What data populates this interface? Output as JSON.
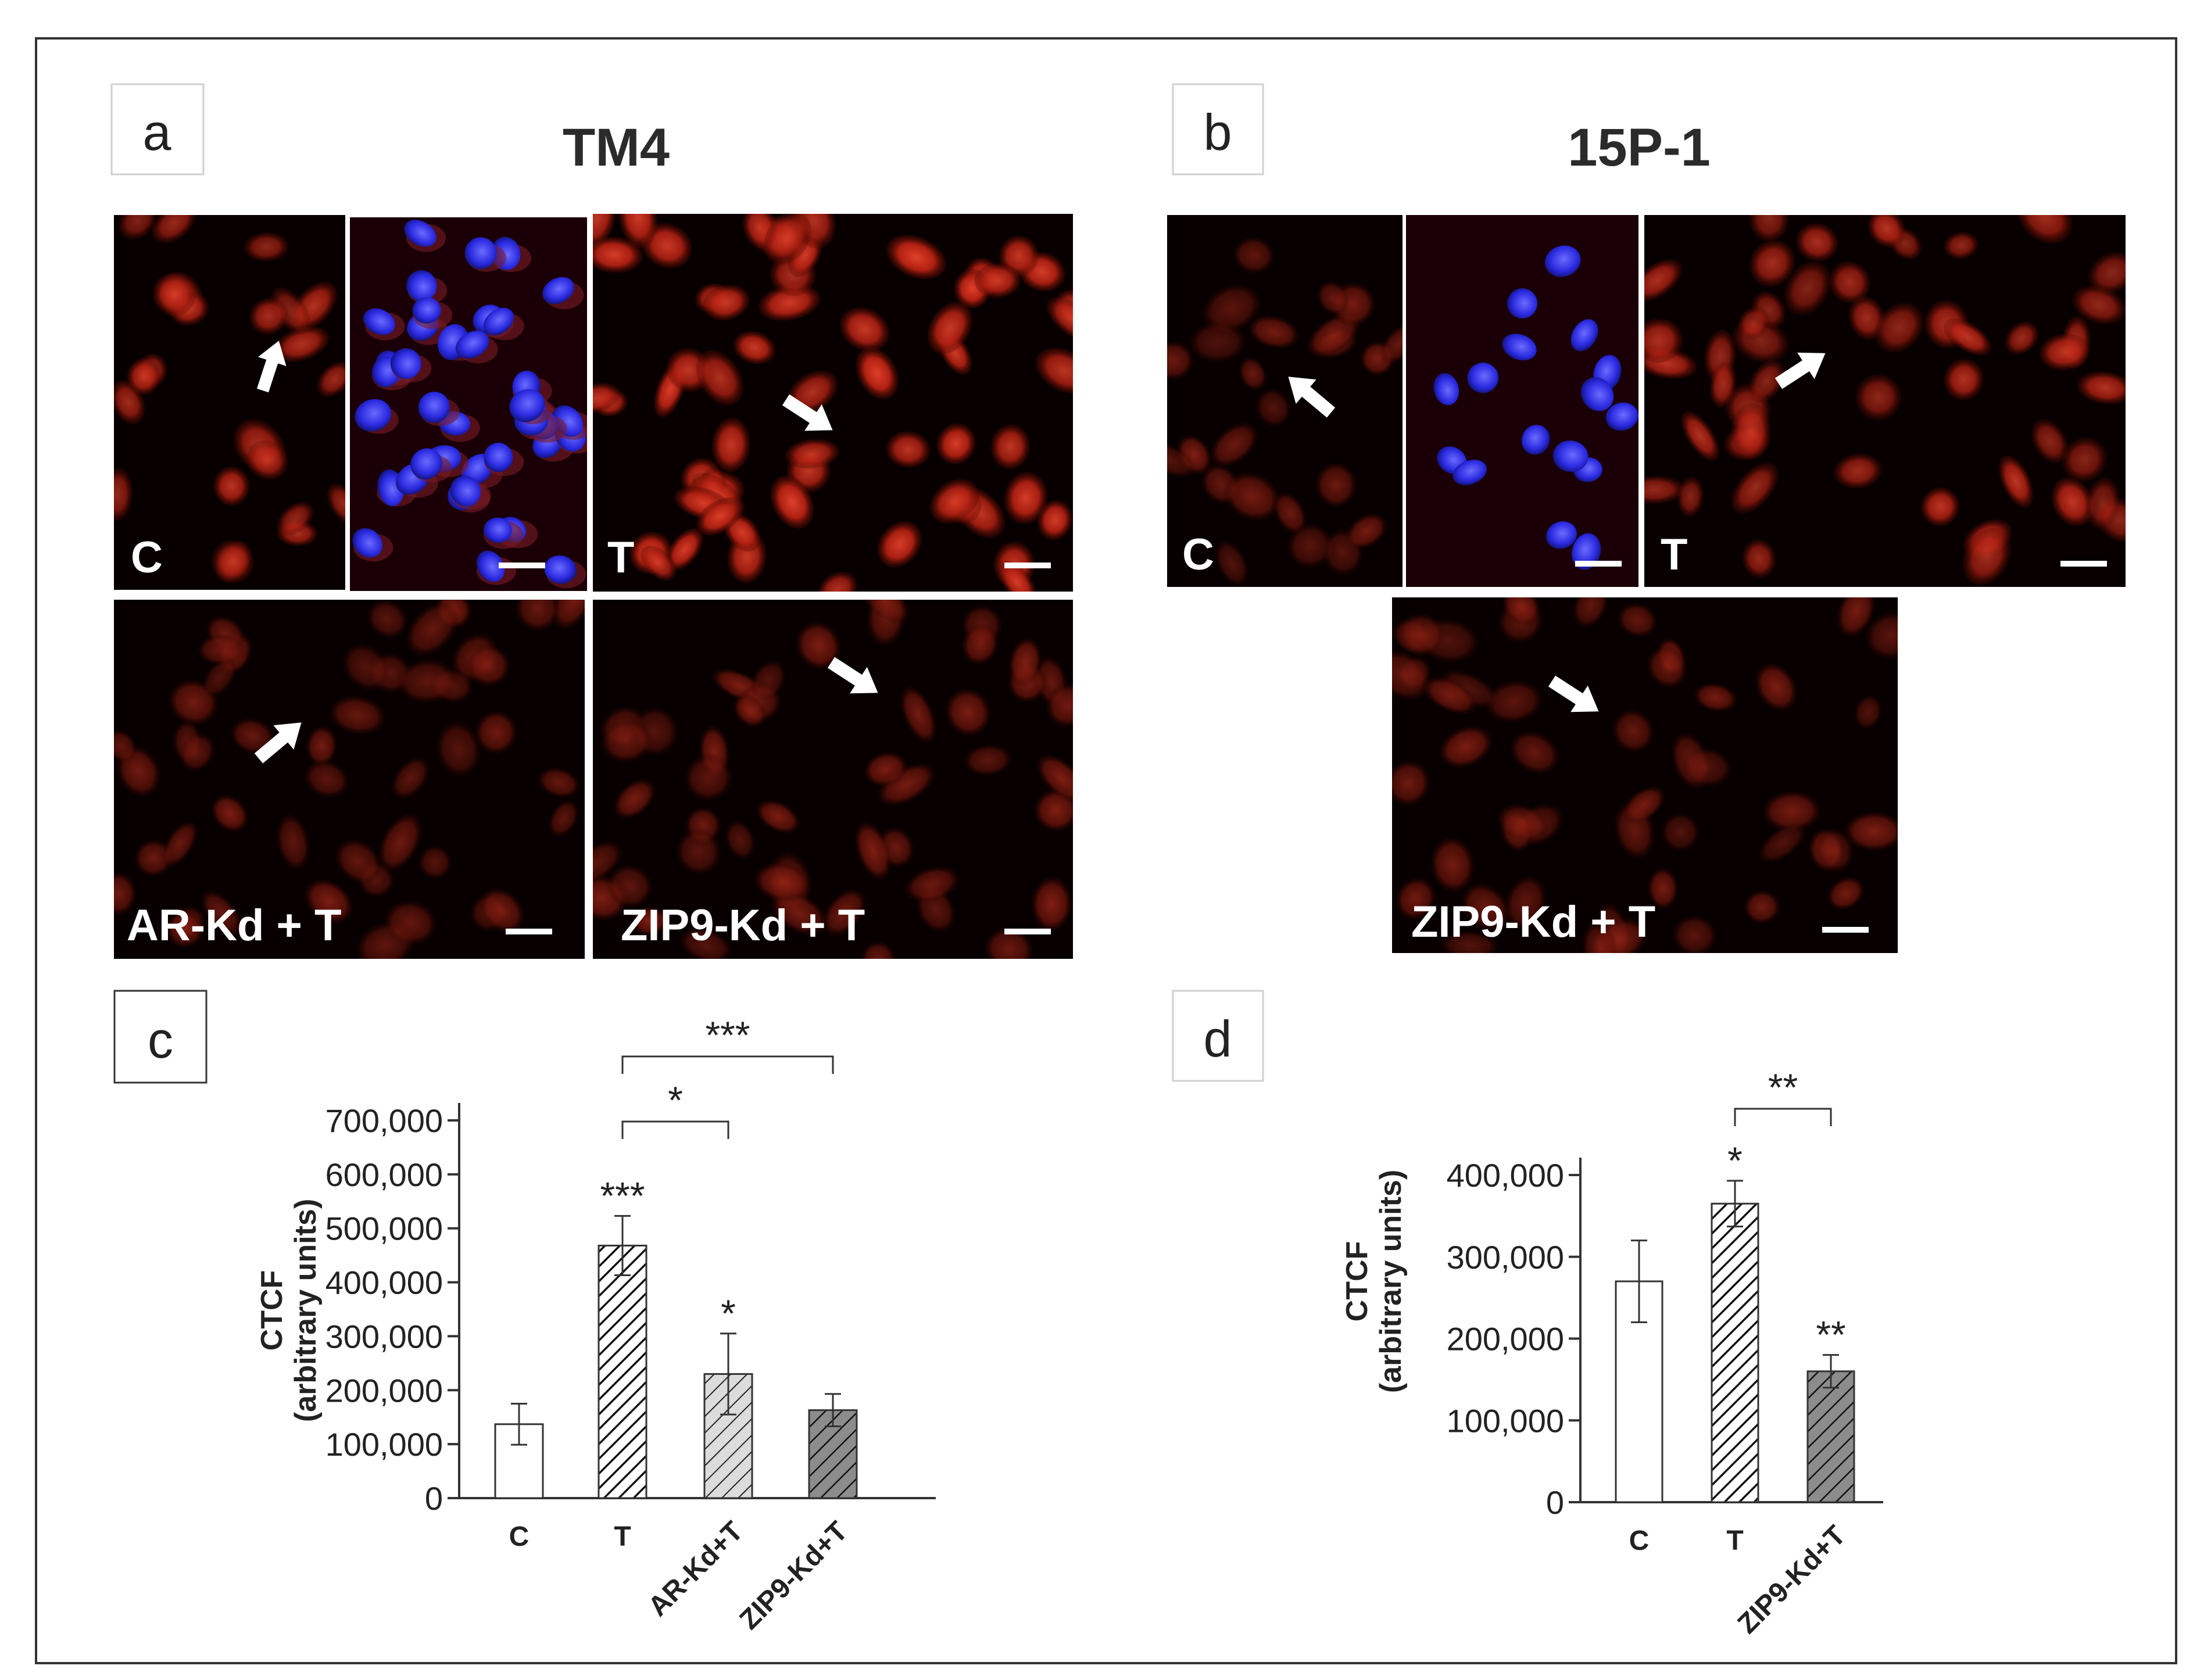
{
  "panels": {
    "a": {
      "letter": "a",
      "title": "TM4",
      "images": [
        {
          "label": "C"
        },
        {
          "label": ""
        },
        {
          "label": "T"
        },
        {
          "label": "AR-Kd + T"
        },
        {
          "label": "ZIP9-Kd + T"
        }
      ]
    },
    "b": {
      "letter": "b",
      "title": "15P-1",
      "images": [
        {
          "label": "C"
        },
        {
          "label": ""
        },
        {
          "label": "T"
        },
        {
          "label": "ZIP9-Kd + T"
        }
      ]
    },
    "c": {
      "letter": "c"
    },
    "d": {
      "letter": "d"
    }
  },
  "colors": {
    "micrograph_background": "#0a0000",
    "cell_red": "#c8281a",
    "nucleus_blue": "#3a3aff",
    "bar_fill_c": "#ffffff",
    "bar_fill_arkd": "#d4d4d4",
    "bar_fill_zip9": "#8c8c8c",
    "border": "#333333"
  },
  "chart_data": [
    {
      "type": "bar",
      "panel": "c",
      "ylabel_line1": "CTCF",
      "ylabel_line2": "(arbitrary units)",
      "ylim": [
        0,
        700000
      ],
      "yticks": [
        0,
        100000,
        200000,
        300000,
        400000,
        500000,
        600000,
        700000
      ],
      "ytick_labels": [
        "0",
        "100,000",
        "200,000",
        "300,000",
        "400,000",
        "500,000",
        "600,000",
        "700,000"
      ],
      "categories": [
        "C",
        "T",
        "AR-Kd+T",
        "ZIP9-Kd+T"
      ],
      "values": [
        137000,
        468000,
        230000,
        163000
      ],
      "errors": [
        38000,
        55000,
        75000,
        30000
      ],
      "patterns": [
        "none",
        "hatch-dense",
        "hatch-light",
        "hatch-dark"
      ],
      "significance": [
        "",
        "***",
        "*",
        ""
      ],
      "brackets": [
        {
          "from": "T",
          "to": "AR-Kd+T",
          "label": "*"
        },
        {
          "from": "T",
          "to": "ZIP9-Kd+T",
          "label": "***"
        }
      ]
    },
    {
      "type": "bar",
      "panel": "d",
      "ylabel_line1": "CTCF",
      "ylabel_line2": "(arbitrary units)",
      "ylim": [
        0,
        400000
      ],
      "yticks": [
        0,
        100000,
        200000,
        300000,
        400000
      ],
      "ytick_labels": [
        "0",
        "100,000",
        "200,000",
        "300,000",
        "400,000"
      ],
      "categories": [
        "C",
        "T",
        "ZIP9-Kd+T"
      ],
      "values": [
        270000,
        365000,
        160000
      ],
      "errors": [
        50000,
        28000,
        20000
      ],
      "patterns": [
        "none",
        "hatch-dense",
        "hatch-dark"
      ],
      "significance": [
        "",
        "*",
        "**"
      ],
      "brackets": [
        {
          "from": "T",
          "to": "ZIP9-Kd+T",
          "label": "**"
        }
      ]
    }
  ]
}
